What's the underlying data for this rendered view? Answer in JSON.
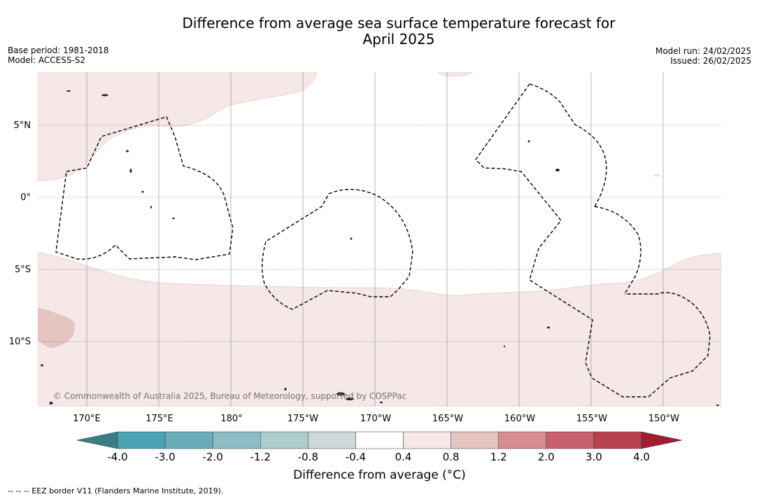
{
  "title_line1": "Difference from average sea surface temperature forecast for",
  "title_line2": "April 2025",
  "base_period": "Base period: 1981-2018",
  "model": "Model: ACCESS-S2",
  "model_run": "Model run: 24/02/2025",
  "issued": "Issued: 26/02/2025",
  "copyright": "© Commonwealth of Australia 2025, Bureau of Meteorology, supported by COSPPac",
  "lat_labels": [
    "5°N",
    "0°",
    "5°S",
    "10°S"
  ],
  "lon_labels": [
    "170°E",
    "175°E",
    "180°",
    "175°W",
    "170°W",
    "165°W",
    "160°W",
    "155°W",
    "150°W"
  ],
  "colorbar": {
    "title": "Difference from average (°C)",
    "ticks": [
      "-4.0",
      "-3.0",
      "-2.0",
      "-1.2",
      "-0.8",
      "-0.4",
      "0.4",
      "0.8",
      "1.2",
      "2.0",
      "3.0",
      "4.0"
    ],
    "colors": [
      "#4aa3b3",
      "#69adba",
      "#8cbcc4",
      "#aecbce",
      "#ccd8d9",
      "#ffffff",
      "#f5e8e7",
      "#e6c4c0",
      "#d88d93",
      "#c9606e",
      "#b9404f"
    ],
    "under_color": "#3b7f86",
    "over_color": "#a21c34"
  },
  "footnote": "--  --  -- EEZ border V11 (Flanders Marine Institute, 2019).",
  "colors": {
    "warm_light": "#f5e8e7",
    "warm_mid": "#e6c4c0",
    "background": "#ffffff"
  }
}
